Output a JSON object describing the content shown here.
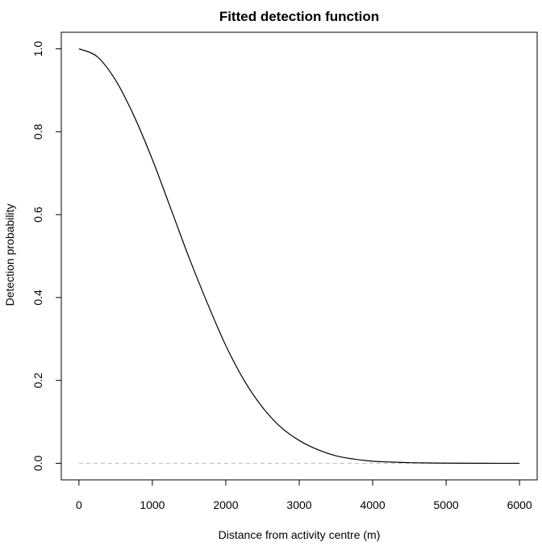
{
  "chart_data": {
    "type": "line",
    "title": "Fitted detection function",
    "xlabel": "Distance from activity centre (m)",
    "ylabel": "Detection probability",
    "xlim": [
      -240,
      6240
    ],
    "ylim": [
      -0.04,
      1.04
    ],
    "x_ticks": [
      0,
      1000,
      2000,
      3000,
      4000,
      5000,
      6000
    ],
    "x_tick_labels": [
      "0",
      "1000",
      "2000",
      "3000",
      "4000",
      "5000",
      "6000"
    ],
    "y_ticks": [
      0.0,
      0.2,
      0.4,
      0.6,
      0.8,
      1.0
    ],
    "y_tick_labels": [
      "0.0",
      "0.2",
      "0.4",
      "0.6",
      "0.8",
      "1.0"
    ],
    "grid": false,
    "reference_line": {
      "y": 0,
      "style": "dashed",
      "color": "#bebebe"
    },
    "series": [
      {
        "color": "#000000",
        "x": [
          0,
          250,
          500,
          750,
          1000,
          1250,
          1500,
          1750,
          2000,
          2250,
          2500,
          2750,
          3000,
          3250,
          3500,
          3750,
          4000,
          4250,
          4500,
          4750,
          5000,
          5500,
          6000
        ],
        "y": [
          1.0,
          0.981,
          0.924,
          0.838,
          0.733,
          0.615,
          0.496,
          0.386,
          0.284,
          0.2,
          0.135,
          0.087,
          0.055,
          0.033,
          0.018,
          0.01,
          0.005,
          0.003,
          0.0015,
          0.0008,
          0.0004,
          0.0001,
          0.0
        ]
      }
    ]
  }
}
